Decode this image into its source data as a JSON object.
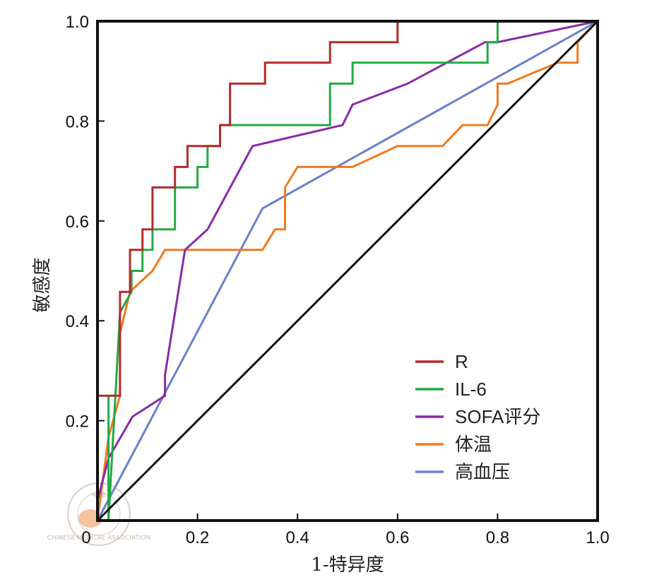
{
  "chart_data": {
    "type": "line",
    "title": "",
    "xlabel": "1-特异度",
    "ylabel": "敏感度",
    "xlim": [
      0,
      1
    ],
    "ylim": [
      0,
      1
    ],
    "x_ticks": [
      "0",
      "0.2",
      "0.4",
      "0.6",
      "0.8",
      "1.0"
    ],
    "y_ticks": [
      "0.2",
      "0.4",
      "0.6",
      "0.8",
      "1.0"
    ],
    "grid": false,
    "legend_position": "bottom-right",
    "reference_line": {
      "name": "diagonal",
      "color": "#111111",
      "x": [
        0,
        1
      ],
      "y": [
        0,
        1
      ]
    },
    "series": [
      {
        "name": "R",
        "color": "#b52a2a",
        "x": [
          0,
          0,
          0.045,
          0.045,
          0.065,
          0.065,
          0.09,
          0.09,
          0.11,
          0.11,
          0.155,
          0.155,
          0.18,
          0.18,
          0.245,
          0.245,
          0.265,
          0.265,
          0.3,
          0.3,
          0.335,
          0.335,
          0.465,
          0.465,
          0.6,
          0.6,
          1.0
        ],
        "y": [
          0,
          0.25,
          0.25,
          0.458,
          0.458,
          0.542,
          0.542,
          0.583,
          0.583,
          0.667,
          0.667,
          0.708,
          0.708,
          0.75,
          0.75,
          0.792,
          0.792,
          0.875,
          0.875,
          0.875,
          0.875,
          0.917,
          0.917,
          0.958,
          0.958,
          1.0,
          1.0
        ]
      },
      {
        "name": "IL-6",
        "color": "#22aa44",
        "x": [
          0.005,
          0.022,
          0.022,
          0.022,
          0.022,
          0.045,
          0.045,
          0.068,
          0.068,
          0.09,
          0.09,
          0.11,
          0.11,
          0.155,
          0.155,
          0.2,
          0.2,
          0.22,
          0.22,
          0.245,
          0.245,
          0.265,
          0.265,
          0.465,
          0.465,
          0.51,
          0.51,
          0.78,
          0.78,
          0.8,
          0.8,
          1.0
        ],
        "y": [
          0,
          0,
          0.042,
          0.25,
          0,
          0.417,
          0.417,
          0.458,
          0.5,
          0.5,
          0.542,
          0.542,
          0.583,
          0.583,
          0.667,
          0.667,
          0.708,
          0.708,
          0.75,
          0.75,
          0.792,
          0.792,
          0.792,
          0.792,
          0.875,
          0.875,
          0.917,
          0.917,
          0.958,
          0.958,
          1.0,
          1.0
        ]
      },
      {
        "name": "SOFA评分",
        "color": "#8a2aa8",
        "x": [
          0,
          0.022,
          0.07,
          0.135,
          0.135,
          0.175,
          0.22,
          0.31,
          0.49,
          0.51,
          0.62,
          0.775,
          0.8,
          1.0
        ],
        "y": [
          0.04,
          0.125,
          0.208,
          0.25,
          0.292,
          0.542,
          0.583,
          0.75,
          0.792,
          0.833,
          0.875,
          0.958,
          0.958,
          1.0
        ]
      },
      {
        "name": "体温",
        "color": "#f07a1e",
        "x": [
          0,
          0.022,
          0.045,
          0.045,
          0.065,
          0.11,
          0.135,
          0.33,
          0.355,
          0.375,
          0.375,
          0.4,
          0.51,
          0.6,
          0.69,
          0.73,
          0.78,
          0.8,
          0.8,
          0.82,
          0.92,
          0.96,
          0.96,
          1.0
        ],
        "y": [
          0,
          0.167,
          0.25,
          0.375,
          0.458,
          0.5,
          0.542,
          0.542,
          0.583,
          0.583,
          0.667,
          0.708,
          0.708,
          0.75,
          0.75,
          0.792,
          0.792,
          0.833,
          0.875,
          0.875,
          0.917,
          0.917,
          0.958,
          1.0
        ]
      },
      {
        "name": "高血压",
        "color": "#6a80cc",
        "x": [
          0,
          0.33,
          1.0
        ],
        "y": [
          0,
          0.625,
          1.0
        ]
      }
    ]
  },
  "watermark": {
    "text_top": "中 华",
    "text_bottom": "CHINESE MEDICAL ASSOCIATION"
  }
}
